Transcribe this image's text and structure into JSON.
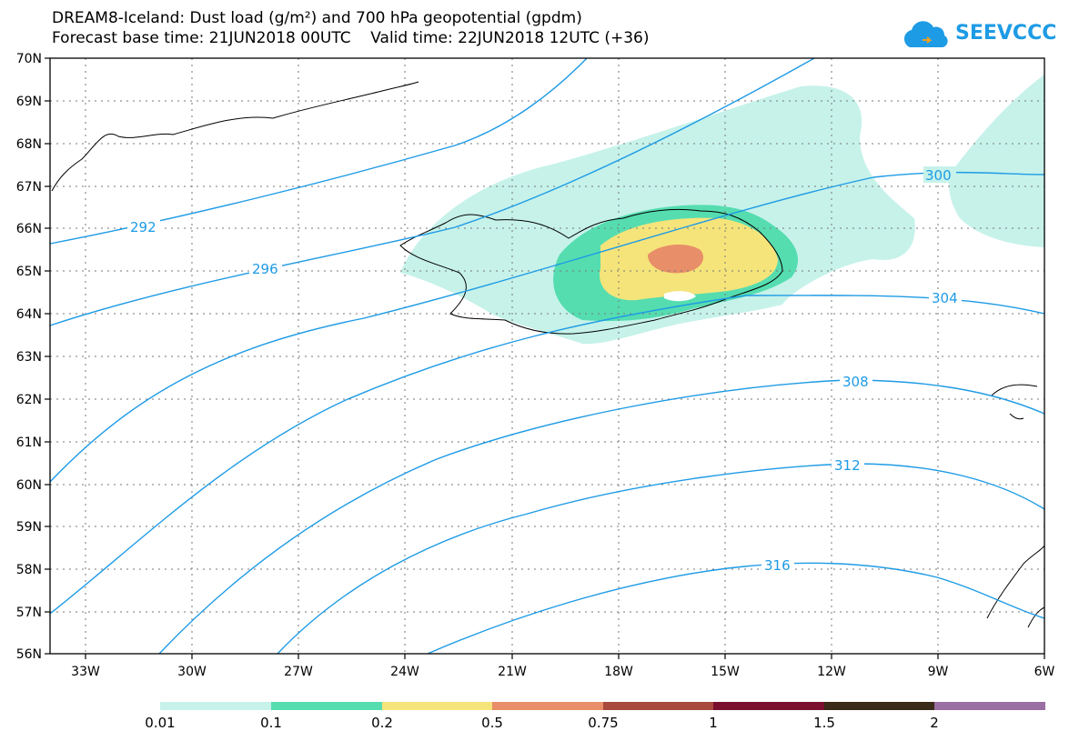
{
  "header": {
    "title_line1": "DREAM8-Iceland: Dust load (g/m²) and 700 hPa geopotential (gpdm)",
    "title_line2": "Forecast base time: 21JUN2018 00UTC    Valid time: 22JUN2018 12UTC (+36)"
  },
  "logo": {
    "text": "SEEVCCC",
    "icon": "cloud-logo-icon"
  },
  "axes": {
    "y_labels": [
      "70N",
      "69N",
      "68N",
      "67N",
      "66N",
      "65N",
      "64N",
      "63N",
      "62N",
      "61N",
      "60N",
      "59N",
      "58N",
      "57N",
      "56N"
    ],
    "x_labels": [
      "33W",
      "30W",
      "27W",
      "24W",
      "21W",
      "18W",
      "15W",
      "12W",
      "9W",
      "6W"
    ]
  },
  "contours": {
    "line_color": "#1e9be5",
    "labels": [
      "292",
      "296",
      "300",
      "304",
      "308",
      "312",
      "316"
    ]
  },
  "legend": {
    "colors": [
      "#c6f2ea",
      "#55ddb0",
      "#f5e47a",
      "#e88e68",
      "#a84a3d",
      "#7a0f2e",
      "#3a2a18",
      "#9a6fa3"
    ],
    "labels": [
      "0.01",
      "0.1",
      "0.2",
      "0.5",
      "0.75",
      "1",
      "1.5",
      "2"
    ]
  }
}
